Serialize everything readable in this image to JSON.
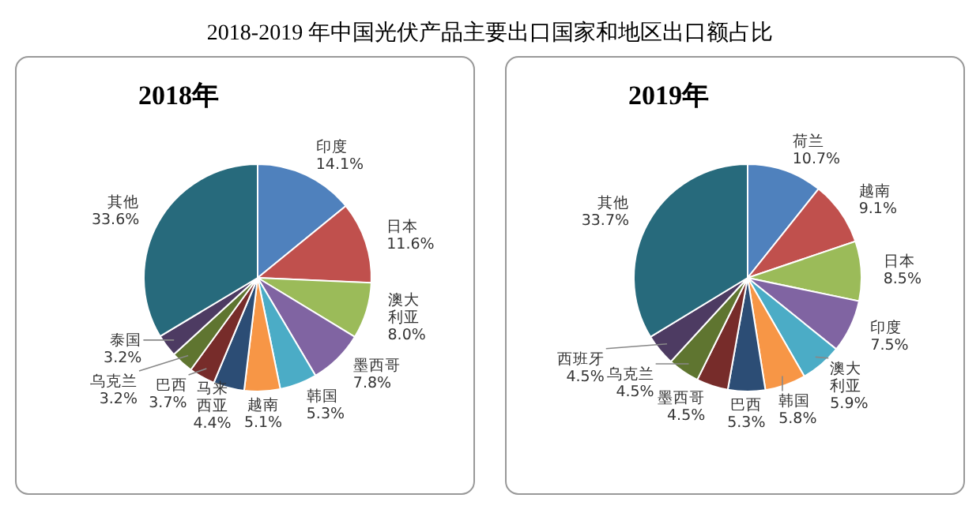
{
  "chart_data": [
    {
      "type": "other",
      "title": "2018-2019 年中国光伏产品主要出口国家和地区出口额占比"
    },
    {
      "type": "pie",
      "title": "2018年",
      "categories": [
        "印度",
        "日本",
        "澳大利亚",
        "墨西哥",
        "韩国",
        "越南",
        "马来西亚",
        "巴西",
        "乌克兰",
        "泰国",
        "其他"
      ],
      "values": [
        14.1,
        11.6,
        8.0,
        7.8,
        5.3,
        5.1,
        4.4,
        3.7,
        3.2,
        3.2,
        33.6
      ],
      "value_labels": [
        "14.1%",
        "11.6%",
        "8.0%",
        "7.8%",
        "5.3%",
        "5.1%",
        "4.4%",
        "3.7%",
        "3.2%",
        "3.2%",
        "33.6%"
      ],
      "colors": [
        "#4f81bd",
        "#c0504d",
        "#9bbb59",
        "#8064a2",
        "#4bacc6",
        "#f79646",
        "#2c4d75",
        "#772c2a",
        "#5f7530",
        "#4d3b62",
        "#276a7c"
      ]
    },
    {
      "type": "pie",
      "title": "2019年",
      "categories": [
        "荷兰",
        "越南",
        "日本",
        "印度",
        "澳大利亚",
        "韩国",
        "巴西",
        "墨西哥",
        "乌克兰",
        "西班牙",
        "其他"
      ],
      "values": [
        10.7,
        9.1,
        8.5,
        7.5,
        5.9,
        5.8,
        5.3,
        4.5,
        4.5,
        4.5,
        33.7
      ],
      "value_labels": [
        "10.7%",
        "9.1%",
        "8.5%",
        "7.5%",
        "5.9%",
        "5.8%",
        "5.3%",
        "4.5%",
        "4.5%",
        "4.5%",
        "33.7%"
      ],
      "colors": [
        "#4f81bd",
        "#c0504d",
        "#9bbb59",
        "#8064a2",
        "#4bacc6",
        "#f79646",
        "#2c4d75",
        "#772c2a",
        "#5f7530",
        "#4d3b62",
        "#276a7c"
      ]
    }
  ]
}
